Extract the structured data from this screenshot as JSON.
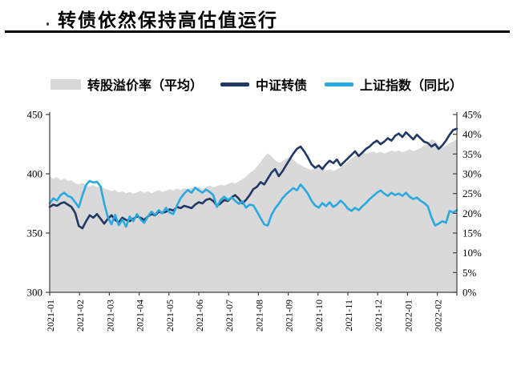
{
  "header": {
    "title": "转债依然保持高估值运行"
  },
  "colors": {
    "premium_area": "#d9d9d9",
    "bond_index_line": "#1f3864",
    "sse_yoy_line": "#29a9df",
    "axis": "#404040",
    "text": "#000000",
    "rule": "#000000"
  },
  "chart_data": {
    "type": "area+line",
    "title": "",
    "x_tick_labels": [
      "2021-01",
      "2021-02",
      "2021-03",
      "2021-04",
      "2021-05",
      "2021-06",
      "2021-07",
      "2021-08",
      "2021-09",
      "2021-10",
      "2021-11",
      "2021-12",
      "2022-01",
      "2022-02"
    ],
    "x_note": "values sampled ~8 per month, Jan 2021 - late Feb 2022",
    "left_axis": {
      "min": 300,
      "max": 450,
      "tick_labels": [
        "450",
        "400",
        "350",
        "300"
      ]
    },
    "right_axis": {
      "min": 0,
      "max": 45,
      "tick_labels": [
        "45%",
        "40%",
        "35%",
        "30%",
        "25%",
        "20%",
        "15%",
        "10%",
        "5%",
        "0%"
      ]
    },
    "grid": false,
    "legend_position": "top",
    "series": [
      {
        "name": "转股溢价率（平均）",
        "type": "area",
        "axis": "right",
        "color": "#d9d9d9",
        "values": [
          29.3,
          28.8,
          29.1,
          28.4,
          28.8,
          28.1,
          28.4,
          27.6,
          27.3,
          27.7,
          27.1,
          26.8,
          27.2,
          26.6,
          26.9,
          26.3,
          26.0,
          25.6,
          25.9,
          25.3,
          25.6,
          25.1,
          25.4,
          25.0,
          25.3,
          25.7,
          25.2,
          25.6,
          25.1,
          25.5,
          25.9,
          25.4,
          25.7,
          26.1,
          25.8,
          26.3,
          25.9,
          26.4,
          26.1,
          26.5,
          26.3,
          26.7,
          26.2,
          26.6,
          27.0,
          26.5,
          26.9,
          27.2,
          27.0,
          27.4,
          27.8,
          27.5,
          28.1,
          28.6,
          29.3,
          30.2,
          30.8,
          31.8,
          33.0,
          34.2,
          35.2,
          34.4,
          33.4,
          32.8,
          33.1,
          33.8,
          34.3,
          33.6,
          32.8,
          32.2,
          31.7,
          31.3,
          31.0,
          31.5,
          31.9,
          31.4,
          30.8,
          31.2,
          30.7,
          31.1,
          31.6,
          32.3,
          33.1,
          33.8,
          34.5,
          35.0,
          35.4,
          35.1,
          35.3,
          35.7,
          35.2,
          35.6,
          35.1,
          35.5,
          35.9,
          35.6,
          35.9,
          35.4,
          35.8,
          36.2,
          35.7,
          36.1,
          36.5,
          37.2,
          37.6,
          38.8,
          38.4,
          37.2,
          36.6,
          37.0,
          37.8,
          38.2,
          38.8
        ]
      },
      {
        "name": "中证转债",
        "type": "line",
        "axis": "left",
        "color": "#1f3864",
        "values": [
          372,
          374,
          373,
          375,
          376,
          374,
          372,
          367,
          356,
          354,
          360,
          365,
          363,
          366,
          362,
          358,
          362,
          365,
          361,
          359,
          363,
          361,
          360,
          362,
          364,
          363,
          361,
          364,
          366,
          365,
          368,
          367,
          368,
          370,
          369,
          372,
          371,
          373,
          372,
          371,
          374,
          376,
          375,
          378,
          379,
          377,
          373,
          375,
          378,
          377,
          380,
          382,
          379,
          375,
          378,
          382,
          387,
          389,
          393,
          391,
          396,
          401,
          404,
          398,
          402,
          407,
          412,
          417,
          421,
          423,
          419,
          414,
          408,
          405,
          407,
          404,
          408,
          411,
          409,
          412,
          407,
          410,
          413,
          416,
          419,
          415,
          418,
          421,
          423,
          426,
          428,
          425,
          427,
          430,
          428,
          432,
          434,
          431,
          435,
          432,
          429,
          433,
          430,
          427,
          426,
          423,
          425,
          421,
          424,
          428,
          433,
          437,
          438
        ]
      },
      {
        "name": "上证指数（同比）",
        "type": "line",
        "axis": "right",
        "color": "#29a9df",
        "values": [
          22.5,
          23.8,
          23.2,
          24.6,
          25.2,
          24.4,
          24.0,
          22.8,
          21.5,
          24.5,
          27.2,
          28.2,
          27.8,
          28.0,
          26.8,
          22.5,
          19.0,
          17.2,
          19.6,
          17.0,
          18.4,
          16.6,
          19.2,
          18.0,
          19.8,
          18.4,
          17.6,
          19.2,
          20.4,
          19.6,
          20.8,
          20.0,
          21.4,
          20.2,
          19.8,
          22.0,
          23.8,
          25.0,
          25.9,
          25.2,
          26.5,
          25.8,
          25.2,
          26.0,
          25.4,
          24.6,
          21.6,
          23.4,
          24.2,
          23.4,
          24.0,
          23.2,
          22.4,
          23.0,
          21.4,
          22.2,
          22.0,
          20.5,
          18.8,
          17.2,
          16.9,
          19.6,
          21.2,
          22.4,
          23.8,
          24.8,
          25.6,
          26.4,
          25.8,
          27.3,
          26.2,
          25.0,
          23.2,
          22.0,
          21.4,
          22.6,
          21.8,
          22.8,
          21.6,
          22.2,
          23.2,
          22.4,
          21.2,
          20.6,
          21.4,
          20.8,
          21.8,
          22.6,
          23.6,
          24.4,
          25.2,
          25.8,
          25.0,
          24.4,
          25.2,
          24.6,
          25.0,
          24.4,
          25.2,
          24.2,
          23.6,
          24.0,
          23.2,
          22.6,
          21.8,
          19.0,
          16.9,
          17.4,
          18.0,
          17.6,
          20.6,
          20.2,
          20.8
        ]
      }
    ]
  }
}
